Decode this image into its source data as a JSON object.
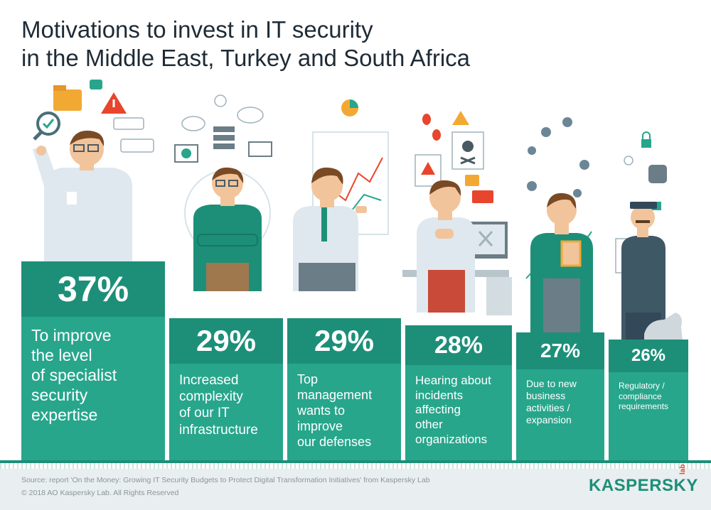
{
  "title_line1": "Motivations to invest in IT security",
  "title_line2": "in the Middle East, Turkey and South Africa",
  "chart_data": {
    "type": "bar",
    "categories": [
      "To improve the level of specialist security expertise",
      "Increased complexity of our IT infrastructure",
      "Top management wants to improve our defenses",
      "Hearing about incidents affecting other organizations",
      "Due to new business activities / expansion",
      "Regulatory / compliance requirements"
    ],
    "values": [
      37,
      29,
      29,
      28,
      27,
      26
    ],
    "value_labels": [
      "37%",
      "29%",
      "29%",
      "28%",
      "27%",
      "26%"
    ],
    "label_lines": [
      [
        "To improve",
        "the level",
        "of specialist",
        "security",
        "expertise"
      ],
      [
        "Increased",
        "complexity",
        "of our IT",
        "infrastructure"
      ],
      [
        "Top",
        "management",
        "wants to",
        "improve",
        "our defenses"
      ],
      [
        "Hearing about",
        "incidents",
        "affecting",
        "other",
        "organizations"
      ],
      [
        "Due to new",
        "business",
        "activities /",
        "expansion"
      ],
      [
        "Regulatory /",
        "compliance",
        "requirements"
      ]
    ]
  },
  "colors": {
    "bar": "#27a68c",
    "bar_top": "#1d8f78",
    "shirt": "#dfe8ee",
    "skin": "#f2c49b",
    "hair": "#7a4a24"
  },
  "footer": {
    "source": "Source: report 'On the Money: Growing IT Security Budgets to Protect Digital Transformation Initiatives' from Kaspersky Lab",
    "copyright": "© 2018 AO Kaspersky Lab. All Rights Reserved",
    "logo": "KASPERSKY",
    "logo_sub": "lab"
  },
  "icons": [
    "folder-icon",
    "warning-icon",
    "search-icon",
    "cloud-icon",
    "server-icon",
    "chart-icon",
    "bug-icon",
    "skull-icon",
    "map-pin-icon",
    "lock-icon",
    "database-icon"
  ]
}
